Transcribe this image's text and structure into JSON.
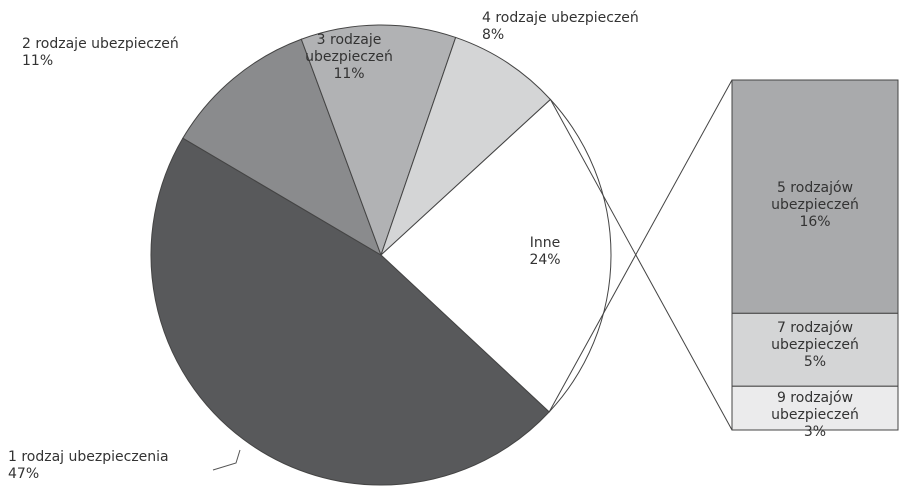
{
  "chart_data": {
    "type": "pie-of-bar",
    "categories": [
      "1 rodzaj ubezpieczenia",
      "2 rodzaje ubezpieczeń",
      "3 rodzaje ubezpieczeń",
      "4 rodzaje ubezpieczeń",
      "Inne"
    ],
    "values": [
      47,
      11,
      11,
      8,
      24
    ],
    "value_labels": [
      "47%",
      "11%",
      "11%",
      "8%",
      "24%"
    ],
    "colors": [
      "#58595b",
      "#8a8b8d",
      "#b1b2b4",
      "#d4d5d6",
      "#ffffff"
    ],
    "bar": {
      "categories": [
        "5 rodzajów ubezpieczeń",
        "7 rodzajów ubezpieczeń",
        "9 rodzajów ubezpieczeń"
      ],
      "values": [
        16,
        5,
        3
      ],
      "value_labels": [
        "16%",
        "5%",
        "3%"
      ],
      "colors": [
        "#a9aaac",
        "#d4d5d6",
        "#ebebec"
      ]
    }
  }
}
